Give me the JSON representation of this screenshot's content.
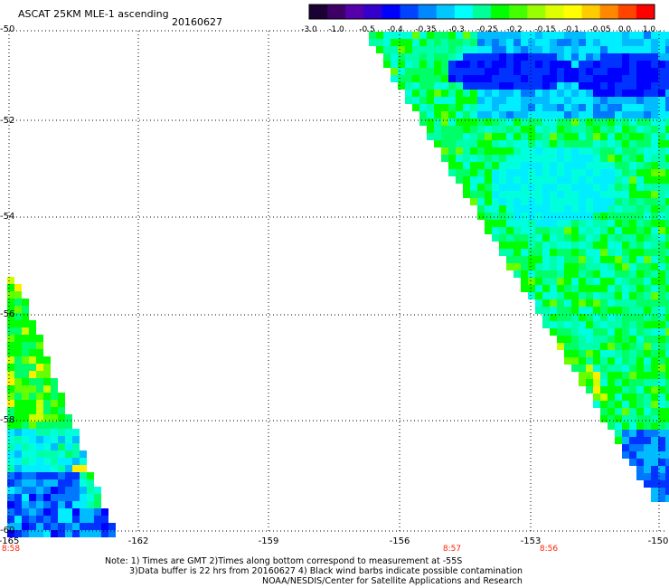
{
  "header": {
    "title": "ASCAT 25KM MLE-1 ascending",
    "date": "20160627"
  },
  "colorbar": {
    "ticks": [
      "-3.0",
      "-1.0",
      "-0.5",
      "-0.4",
      "-0.35",
      "-0.3",
      "-0.25",
      "-0.2",
      "-0.15",
      "-0.1",
      "-0.05",
      "0.0",
      "1.0"
    ],
    "colors": [
      "#1a0033",
      "#3d0066",
      "#5500aa",
      "#3300cc",
      "#0000ff",
      "#0044ff",
      "#0088ff",
      "#00c8ff",
      "#00ffff",
      "#00ff99",
      "#00ff00",
      "#44ff00",
      "#99ff00",
      "#ddff00",
      "#ffff00",
      "#ffcc00",
      "#ff8800",
      "#ff4400",
      "#ff0000"
    ]
  },
  "axes": {
    "y_ticks": [
      "-50",
      "-52",
      "-54",
      "-56",
      "-58",
      "-60"
    ],
    "x_ticks": [
      "-165",
      "-162",
      "-159",
      "-156",
      "-153",
      "-150"
    ]
  },
  "times": [
    "8:58",
    "8:57",
    "8:56"
  ],
  "notes": {
    "line1": "Note: 1) Times are GMT 2)Times along bottom correspond to measurement at -55S",
    "line2": "3)Data buffer is 22 hrs from 20160627 4) Black wind barbs indicate possible contamination",
    "line3": "NOAA/NESDIS/Center for Satellite Applications and Research"
  }
}
